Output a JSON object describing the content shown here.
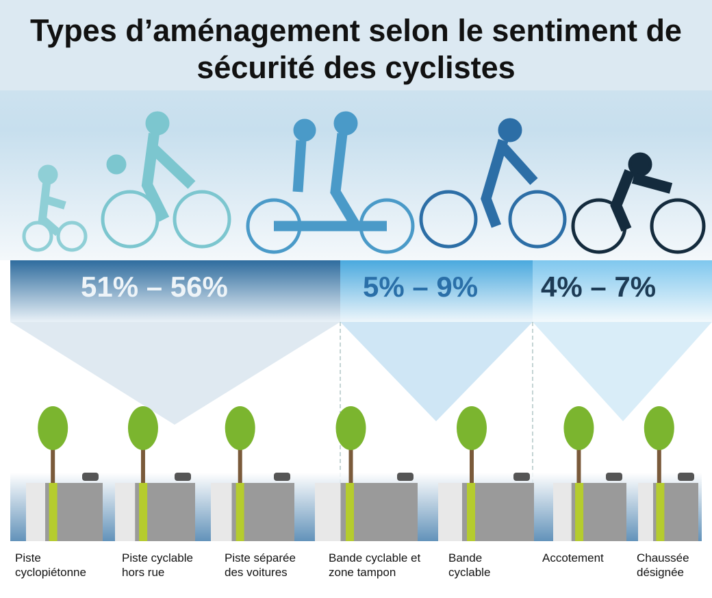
{
  "title": "Types d’aménagement selon le sentiment de sécurité des cyclistes",
  "groups": [
    {
      "label": "51% – 56%"
    },
    {
      "label": "5% – 9%"
    },
    {
      "label": "4% – 7%"
    }
  ],
  "facilities": [
    {
      "label": "Piste cyclopiétonne"
    },
    {
      "label": "Piste cyclable hors rue"
    },
    {
      "label": "Piste séparée des voitures"
    },
    {
      "label": "Bande cyclable et zone tampon"
    },
    {
      "label": "Bande cyclable"
    },
    {
      "label": "Accotement"
    },
    {
      "label": "Chaussée désignée"
    }
  ]
}
